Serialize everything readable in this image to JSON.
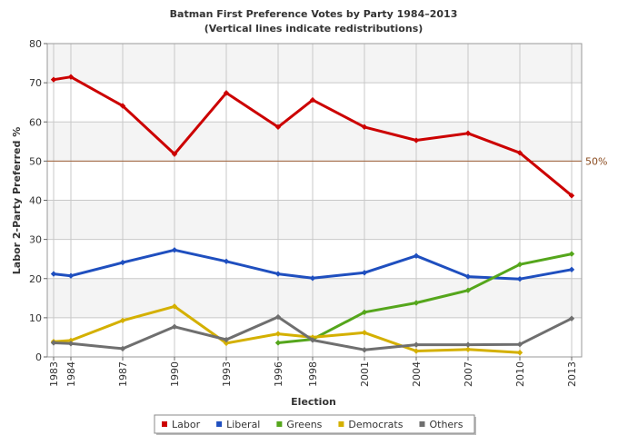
{
  "chart_data": {
    "type": "line",
    "title": "Batman First Preference Votes by Party 1984–2013",
    "subtitle": "(Vertical lines indicate redistributions)",
    "xlabel": "Election",
    "ylabel": "Labor 2-Party Preferred %",
    "x": [
      "1983",
      "1984",
      "1987",
      "1990",
      "1993",
      "1996",
      "1998",
      "2001",
      "2004",
      "2007",
      "2010",
      "2013"
    ],
    "ylim": [
      0,
      80
    ],
    "yticks": [
      "0",
      "10",
      "20",
      "30",
      "40",
      "50",
      "60",
      "70",
      "80"
    ],
    "grid": true,
    "reference_line": {
      "value": 50,
      "label": "50%",
      "color": "#a0623a"
    },
    "legend_position": "bottom",
    "series": [
      {
        "name": "Labor",
        "color": "#cc0000",
        "values": [
          70.8,
          71.5,
          64.1,
          51.8,
          67.4,
          58.7,
          65.6,
          58.7,
          55.3,
          57.1,
          52.1,
          41.2
        ]
      },
      {
        "name": "Liberal",
        "color": "#1f4fbf",
        "values": [
          21.2,
          20.7,
          24.1,
          27.3,
          24.4,
          21.2,
          20.1,
          21.5,
          25.8,
          20.5,
          19.9,
          22.3
        ]
      },
      {
        "name": "Greens",
        "color": "#55a61c",
        "values": [
          null,
          null,
          null,
          null,
          null,
          3.6,
          4.5,
          11.4,
          13.8,
          17.0,
          23.6,
          26.3
        ]
      },
      {
        "name": "Democrats",
        "color": "#d4b000",
        "values": [
          3.9,
          4.2,
          9.3,
          12.9,
          3.5,
          5.9,
          5.0,
          6.2,
          1.5,
          1.9,
          1.1,
          null
        ]
      },
      {
        "name": "Others",
        "color": "#6f6f6f",
        "values": [
          3.6,
          3.4,
          2.1,
          7.7,
          4.4,
          10.2,
          4.3,
          1.8,
          3.1,
          3.1,
          3.2,
          9.8
        ]
      }
    ]
  }
}
